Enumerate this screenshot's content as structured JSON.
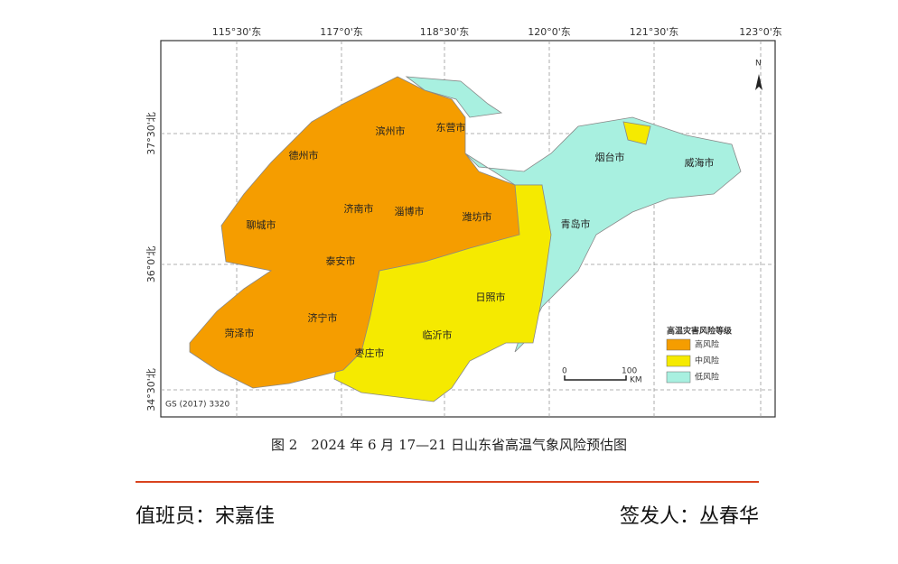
{
  "map": {
    "lon_labels": [
      "115°30'东",
      "117°0'东",
      "118°30'东",
      "120°0'东",
      "121°30'东",
      "123°0'东"
    ],
    "lat_labels": [
      "37°30'北",
      "36°0'北",
      "34°30'北"
    ],
    "cities": [
      "滨州市",
      "东营市",
      "德州市",
      "烟台市",
      "威海市",
      "济南市",
      "淄博市",
      "潍坊市",
      "青岛市",
      "聊城市",
      "泰安市",
      "日照市",
      "济宁市",
      "菏泽市",
      "临沂市",
      "枣庄市"
    ],
    "legend": {
      "title": "高温灾害风险等级",
      "items": [
        {
          "label": "高风险",
          "color": "#f59d00"
        },
        {
          "label": "中风险",
          "color": "#f5ea00"
        },
        {
          "label": "低风险",
          "color": "#a8f0e0"
        }
      ]
    },
    "scale": {
      "start": "0",
      "end": "100",
      "unit": "KM"
    },
    "north": "N",
    "code": "GS (2017) 3320"
  },
  "caption": "图 2　2024 年 6 月 17—21 日山东省高温气象风险预估图",
  "footer": {
    "duty": "值班员：宋嘉佳",
    "issuer": "签发人：丛春华"
  }
}
